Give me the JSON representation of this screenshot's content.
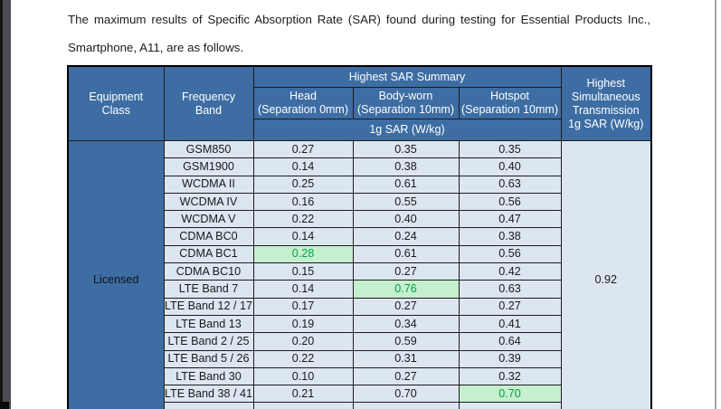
{
  "intro": {
    "line1": "The maximum results of Specific Absorption Rate (SAR) found during testing for Essential Products Inc.,",
    "line2": "Smartphone, A11, are as follows."
  },
  "table": {
    "header": {
      "equipment_class": "Equipment\nClass",
      "frequency_band": "Frequency\nBand",
      "sar_summary": "Highest SAR Summary",
      "head": "Head\n(Separation 0mm)",
      "body_worn": "Body-worn\n(Separation 10mm)",
      "hotspot": "Hotspot\n(Separation 10mm)",
      "unit": "1g SAR (W/kg)",
      "simultaneous": "Highest\nSimultaneous\nTransmission\n1g SAR (W/kg)"
    },
    "equipment_class_value": "Licensed",
    "simultaneous_value": "0.92",
    "rows": [
      {
        "band": "GSM850",
        "head": "0.27",
        "body": "0.35",
        "hotspot": "0.35",
        "highlight": null
      },
      {
        "band": "GSM1900",
        "head": "0.14",
        "body": "0.38",
        "hotspot": "0.40",
        "highlight": null
      },
      {
        "band": "WCDMA II",
        "head": "0.25",
        "body": "0.61",
        "hotspot": "0.63",
        "highlight": null
      },
      {
        "band": "WCDMA IV",
        "head": "0.16",
        "body": "0.55",
        "hotspot": "0.56",
        "highlight": null
      },
      {
        "band": "WCDMA V",
        "head": "0.22",
        "body": "0.40",
        "hotspot": "0.47",
        "highlight": null
      },
      {
        "band": "CDMA BC0",
        "head": "0.14",
        "body": "0.24",
        "hotspot": "0.38",
        "highlight": null
      },
      {
        "band": "CDMA BC1",
        "head": "0.28",
        "body": "0.61",
        "hotspot": "0.56",
        "highlight": "head"
      },
      {
        "band": "CDMA BC10",
        "head": "0.15",
        "body": "0.27",
        "hotspot": "0.42",
        "highlight": null
      },
      {
        "band": "LTE Band 7",
        "head": "0.14",
        "body": "0.76",
        "hotspot": "0.63",
        "highlight": "body"
      },
      {
        "band": "LTE Band 12 / 17",
        "head": "0.17",
        "body": "0.27",
        "hotspot": "0.27",
        "highlight": null
      },
      {
        "band": "LTE Band 13",
        "head": "0.19",
        "body": "0.34",
        "hotspot": "0.41",
        "highlight": null
      },
      {
        "band": "LTE Band 2 / 25",
        "head": "0.20",
        "body": "0.59",
        "hotspot": "0.64",
        "highlight": null
      },
      {
        "band": "LTE Band 5 / 26",
        "head": "0.22",
        "body": "0.31",
        "hotspot": "0.39",
        "highlight": null
      },
      {
        "band": "LTE Band 30",
        "head": "0.10",
        "body": "0.27",
        "hotspot": "0.32",
        "highlight": null
      },
      {
        "band": "LTE Band 38 / 41",
        "head": "0.21",
        "body": "0.70",
        "hotspot": "0.70",
        "highlight": "hotspot"
      }
    ]
  },
  "colors": {
    "header_bg": "#3D6DA3",
    "row_bg": "#DCE6F1",
    "highlight_bg": "#C6EFCE",
    "highlight_text": "#00A14B"
  }
}
